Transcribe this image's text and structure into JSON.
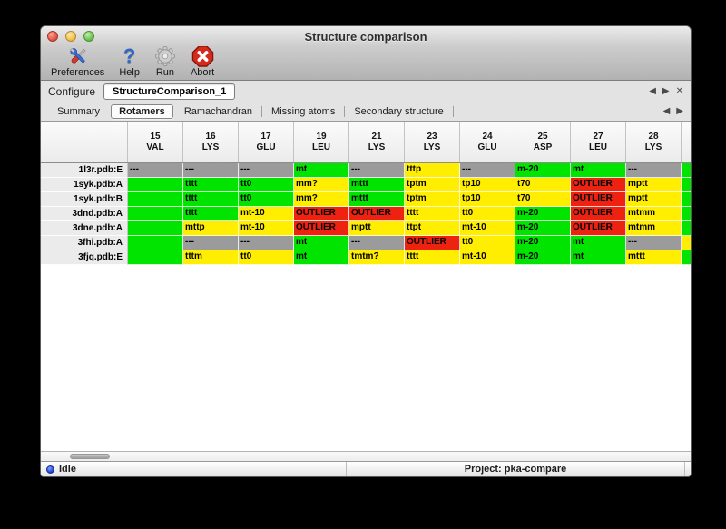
{
  "window": {
    "title": "Structure comparison"
  },
  "toolbar": {
    "items": [
      {
        "label": "Preferences",
        "icon": "tools-icon"
      },
      {
        "label": "Help",
        "icon": "question-icon",
        "glyph": "?"
      },
      {
        "label": "Run",
        "icon": "gear-icon"
      },
      {
        "label": "Abort",
        "icon": "abort-icon"
      }
    ]
  },
  "configure": {
    "label": "Configure",
    "value": "StructureComparison_1",
    "nav": {
      "prev": "◀",
      "next": "▶",
      "close": "✕"
    }
  },
  "tabs": {
    "items": [
      "Summary",
      "Rotamers",
      "Ramachandran",
      "Missing atoms",
      "Secondary structure"
    ],
    "selected": "Rotamers",
    "nav": {
      "prev": "◀",
      "next": "▶"
    }
  },
  "colors": {
    "ok": "#00e400",
    "warn": "#ffee00",
    "outlier": "#ee2211",
    "missing": "#9b9b9b"
  },
  "table": {
    "columns": [
      {
        "num": "15",
        "res": "VAL"
      },
      {
        "num": "16",
        "res": "LYS"
      },
      {
        "num": "17",
        "res": "GLU"
      },
      {
        "num": "19",
        "res": "LEU"
      },
      {
        "num": "21",
        "res": "LYS"
      },
      {
        "num": "23",
        "res": "LYS"
      },
      {
        "num": "24",
        "res": "GLU"
      },
      {
        "num": "25",
        "res": "ASP"
      },
      {
        "num": "27",
        "res": "LEU"
      },
      {
        "num": "28",
        "res": "LYS"
      }
    ],
    "rows": [
      {
        "label": "1l3r.pdb:E",
        "cells": [
          {
            "t": "---",
            "c": "missing"
          },
          {
            "t": "---",
            "c": "missing"
          },
          {
            "t": "---",
            "c": "missing"
          },
          {
            "t": "mt",
            "c": "ok"
          },
          {
            "t": "---",
            "c": "missing"
          },
          {
            "t": "tttp",
            "c": "warn"
          },
          {
            "t": "---",
            "c": "missing"
          },
          {
            "t": "m-20",
            "c": "ok"
          },
          {
            "t": "mt",
            "c": "ok"
          },
          {
            "t": "---",
            "c": "missing"
          }
        ],
        "extra": "ok"
      },
      {
        "label": "1syk.pdb:A",
        "cells": [
          {
            "t": "",
            "c": "ok"
          },
          {
            "t": "tttt",
            "c": "ok"
          },
          {
            "t": "tt0",
            "c": "ok"
          },
          {
            "t": "mm?",
            "c": "warn"
          },
          {
            "t": "mttt",
            "c": "ok"
          },
          {
            "t": "tptm",
            "c": "warn"
          },
          {
            "t": "tp10",
            "c": "warn"
          },
          {
            "t": "t70",
            "c": "warn"
          },
          {
            "t": "OUTLIER",
            "c": "outlier"
          },
          {
            "t": "mptt",
            "c": "warn"
          }
        ],
        "extra": "ok"
      },
      {
        "label": "1syk.pdb:B",
        "cells": [
          {
            "t": "",
            "c": "ok"
          },
          {
            "t": "tttt",
            "c": "ok"
          },
          {
            "t": "tt0",
            "c": "ok"
          },
          {
            "t": "mm?",
            "c": "warn"
          },
          {
            "t": "mttt",
            "c": "ok"
          },
          {
            "t": "tptm",
            "c": "warn"
          },
          {
            "t": "tp10",
            "c": "warn"
          },
          {
            "t": "t70",
            "c": "warn"
          },
          {
            "t": "OUTLIER",
            "c": "outlier"
          },
          {
            "t": "mptt",
            "c": "warn"
          }
        ],
        "extra": "ok"
      },
      {
        "label": "3dnd.pdb:A",
        "cells": [
          {
            "t": "",
            "c": "ok"
          },
          {
            "t": "tttt",
            "c": "ok"
          },
          {
            "t": "mt-10",
            "c": "warn"
          },
          {
            "t": "OUTLIER",
            "c": "outlier"
          },
          {
            "t": "OUTLIER",
            "c": "outlier"
          },
          {
            "t": "tttt",
            "c": "warn"
          },
          {
            "t": "tt0",
            "c": "warn"
          },
          {
            "t": "m-20",
            "c": "ok"
          },
          {
            "t": "OUTLIER",
            "c": "outlier"
          },
          {
            "t": "mtmm",
            "c": "warn"
          }
        ],
        "extra": "ok"
      },
      {
        "label": "3dne.pdb:A",
        "cells": [
          {
            "t": "",
            "c": "ok"
          },
          {
            "t": "mttp",
            "c": "warn"
          },
          {
            "t": "mt-10",
            "c": "warn"
          },
          {
            "t": "OUTLIER",
            "c": "outlier"
          },
          {
            "t": "mptt",
            "c": "warn"
          },
          {
            "t": "ttpt",
            "c": "warn"
          },
          {
            "t": "mt-10",
            "c": "warn"
          },
          {
            "t": "m-20",
            "c": "ok"
          },
          {
            "t": "OUTLIER",
            "c": "outlier"
          },
          {
            "t": "mtmm",
            "c": "warn"
          }
        ],
        "extra": "ok"
      },
      {
        "label": "3fhi.pdb:A",
        "cells": [
          {
            "t": "",
            "c": "ok"
          },
          {
            "t": "---",
            "c": "missing"
          },
          {
            "t": "---",
            "c": "missing"
          },
          {
            "t": "mt",
            "c": "ok"
          },
          {
            "t": "---",
            "c": "missing"
          },
          {
            "t": "OUTLIER",
            "c": "outlier"
          },
          {
            "t": "tt0",
            "c": "warn"
          },
          {
            "t": "m-20",
            "c": "ok"
          },
          {
            "t": "mt",
            "c": "ok"
          },
          {
            "t": "---",
            "c": "missing"
          }
        ],
        "extra": "warn"
      },
      {
        "label": "3fjq.pdb:E",
        "cells": [
          {
            "t": "",
            "c": "ok"
          },
          {
            "t": "tttm",
            "c": "warn"
          },
          {
            "t": "tt0",
            "c": "warn"
          },
          {
            "t": "mt",
            "c": "ok"
          },
          {
            "t": "tmtm?",
            "c": "warn"
          },
          {
            "t": "tttt",
            "c": "warn"
          },
          {
            "t": "mt-10",
            "c": "warn"
          },
          {
            "t": "m-20",
            "c": "ok"
          },
          {
            "t": "mt",
            "c": "ok"
          },
          {
            "t": "mttt",
            "c": "warn"
          }
        ],
        "extra": "ok"
      }
    ]
  },
  "statusbar": {
    "state": "Idle",
    "project": "Project: pka-compare"
  }
}
